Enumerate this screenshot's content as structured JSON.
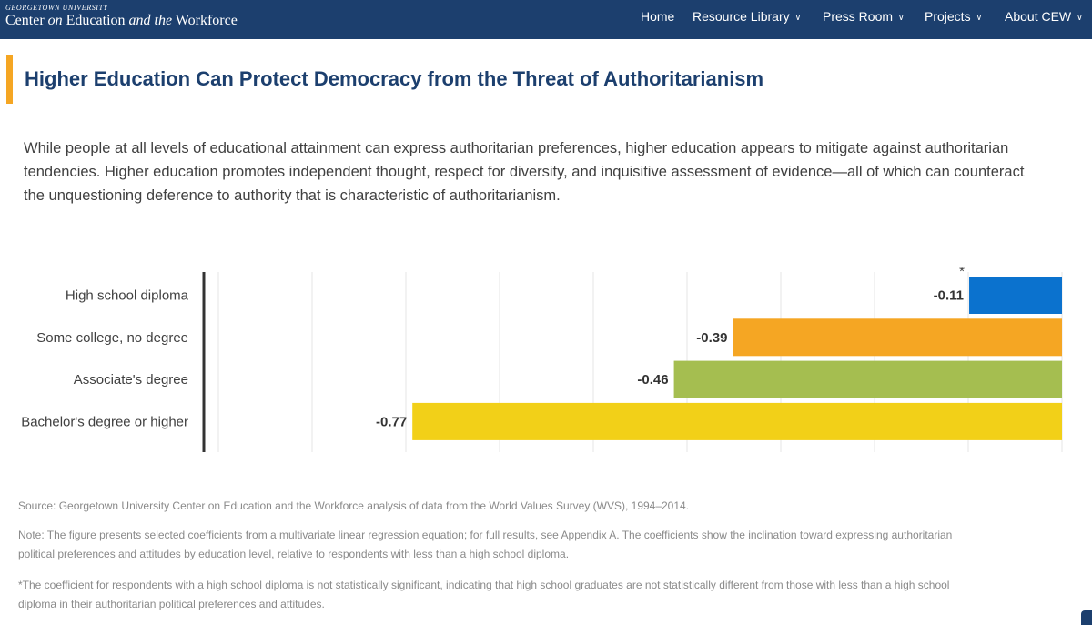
{
  "header": {
    "logo_small": "Georgetown University",
    "logo_main_1": "Center",
    "logo_main_2": "on",
    "logo_main_3": "Education",
    "logo_main_4": "and the",
    "logo_main_5": "Workforce",
    "nav": [
      {
        "label": "Home",
        "has_menu": false
      },
      {
        "label": "Resource Library",
        "has_menu": true
      },
      {
        "label": "Press Room",
        "has_menu": true
      },
      {
        "label": "Projects",
        "has_menu": true
      },
      {
        "label": "About CEW",
        "has_menu": true
      }
    ]
  },
  "page": {
    "title": "Higher Education Can Protect Democracy from the Threat of Authoritarianism",
    "intro": "While people at all levels of educational attainment can express authoritarian preferences, higher education appears to mitigate against authoritarian tendencies. Higher education promotes independent thought, respect for diversity, and inquisitive assessment of evidence—all of which can counteract the unquestioning deference to authority that is characteristic of authoritarianism."
  },
  "chart_data": {
    "type": "bar",
    "orientation": "horizontal",
    "categories": [
      "High school diploma",
      "Some college, no degree",
      "Associate's degree",
      "Bachelor's degree or higher"
    ],
    "values": [
      -0.11,
      -0.39,
      -0.46,
      -0.77
    ],
    "value_labels": [
      "-0.11",
      "-0.39",
      "-0.46",
      "-0.77"
    ],
    "colors": [
      "#0b72ce",
      "#f5a623",
      "#a5be50",
      "#f2d018"
    ],
    "annotation": "*",
    "xlim": [
      -1.0,
      0
    ],
    "grid": true,
    "title": "",
    "xlabel": "",
    "ylabel": ""
  },
  "notes": {
    "source": "Source: Georgetown University Center on Education and the Workforce analysis of data from the World Values Survey (WVS), 1994–2014.",
    "note": "Note: The figure presents selected coefficients from a multivariate linear regression equation; for full results, see Appendix A. The coefficients show the inclination toward expressing authoritarian political preferences and attitudes by education level, relative to respondents with less than a high school diploma.",
    "footnote": "*The coefficient for respondents with a high school diploma is not statistically significant, indicating that high school graduates are not statistically different from those with less than a high school diploma in their authoritarian political preferences and attitudes."
  }
}
